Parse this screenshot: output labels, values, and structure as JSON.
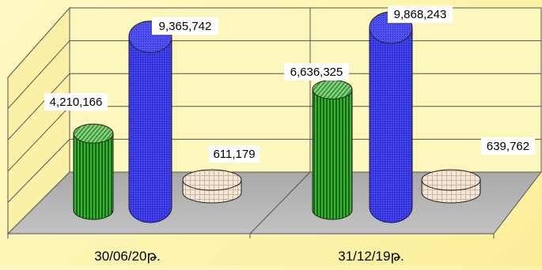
{
  "chart_data": {
    "type": "bar",
    "style": "3d-cylinder",
    "categories": [
      "30/06/20թ.",
      "31/12/19թ."
    ],
    "series": [
      {
        "values": [
          4210166,
          6636325
        ],
        "color": "#2e9e2a"
      },
      {
        "values": [
          9365742,
          9868243
        ],
        "color": "#3333dd"
      },
      {
        "values": [
          611179,
          639762
        ],
        "color": "#f2dcc8"
      }
    ],
    "data_labels": [
      [
        "4,210,166",
        "9,365,742",
        "611,179"
      ],
      [
        "6,636,325",
        "9,868,243",
        "639,762"
      ]
    ],
    "ylim": [
      0,
      10000000
    ],
    "grid": true,
    "legend": "none"
  }
}
